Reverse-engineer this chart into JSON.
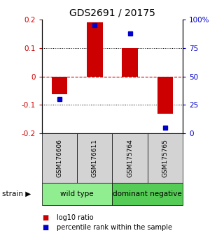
{
  "title": "GDS2691 / 20175",
  "samples": [
    "GSM176606",
    "GSM176611",
    "GSM175764",
    "GSM175765"
  ],
  "log10_ratio": [
    -0.062,
    0.19,
    0.1,
    -0.13
  ],
  "percentile_rank": [
    30,
    95,
    88,
    5
  ],
  "ylim_left": [
    -0.2,
    0.2
  ],
  "ylim_right": [
    0,
    100
  ],
  "yticks_left": [
    -0.2,
    -0.1,
    0,
    0.1,
    0.2
  ],
  "yticks_right": [
    0,
    25,
    50,
    75,
    100
  ],
  "ytick_labels_right": [
    "0",
    "25",
    "50",
    "75",
    "100%"
  ],
  "bar_color": "#cc0000",
  "square_color": "#0000cc",
  "zero_line_color": "#cc0000",
  "grid_color": "#000000",
  "groups": [
    {
      "label": "wild type",
      "indices": [
        0,
        1
      ],
      "color": "#90ee90"
    },
    {
      "label": "dominant negative",
      "indices": [
        2,
        3
      ],
      "color": "#55cc55"
    }
  ],
  "strain_label": "strain",
  "legend_items": [
    {
      "color": "#cc0000",
      "label": "log10 ratio"
    },
    {
      "color": "#0000cc",
      "label": "percentile rank within the sample"
    }
  ],
  "title_fontsize": 10,
  "tick_fontsize": 7.5,
  "sample_fontsize": 6.5,
  "group_fontsize": 7.5,
  "legend_fontsize": 7
}
